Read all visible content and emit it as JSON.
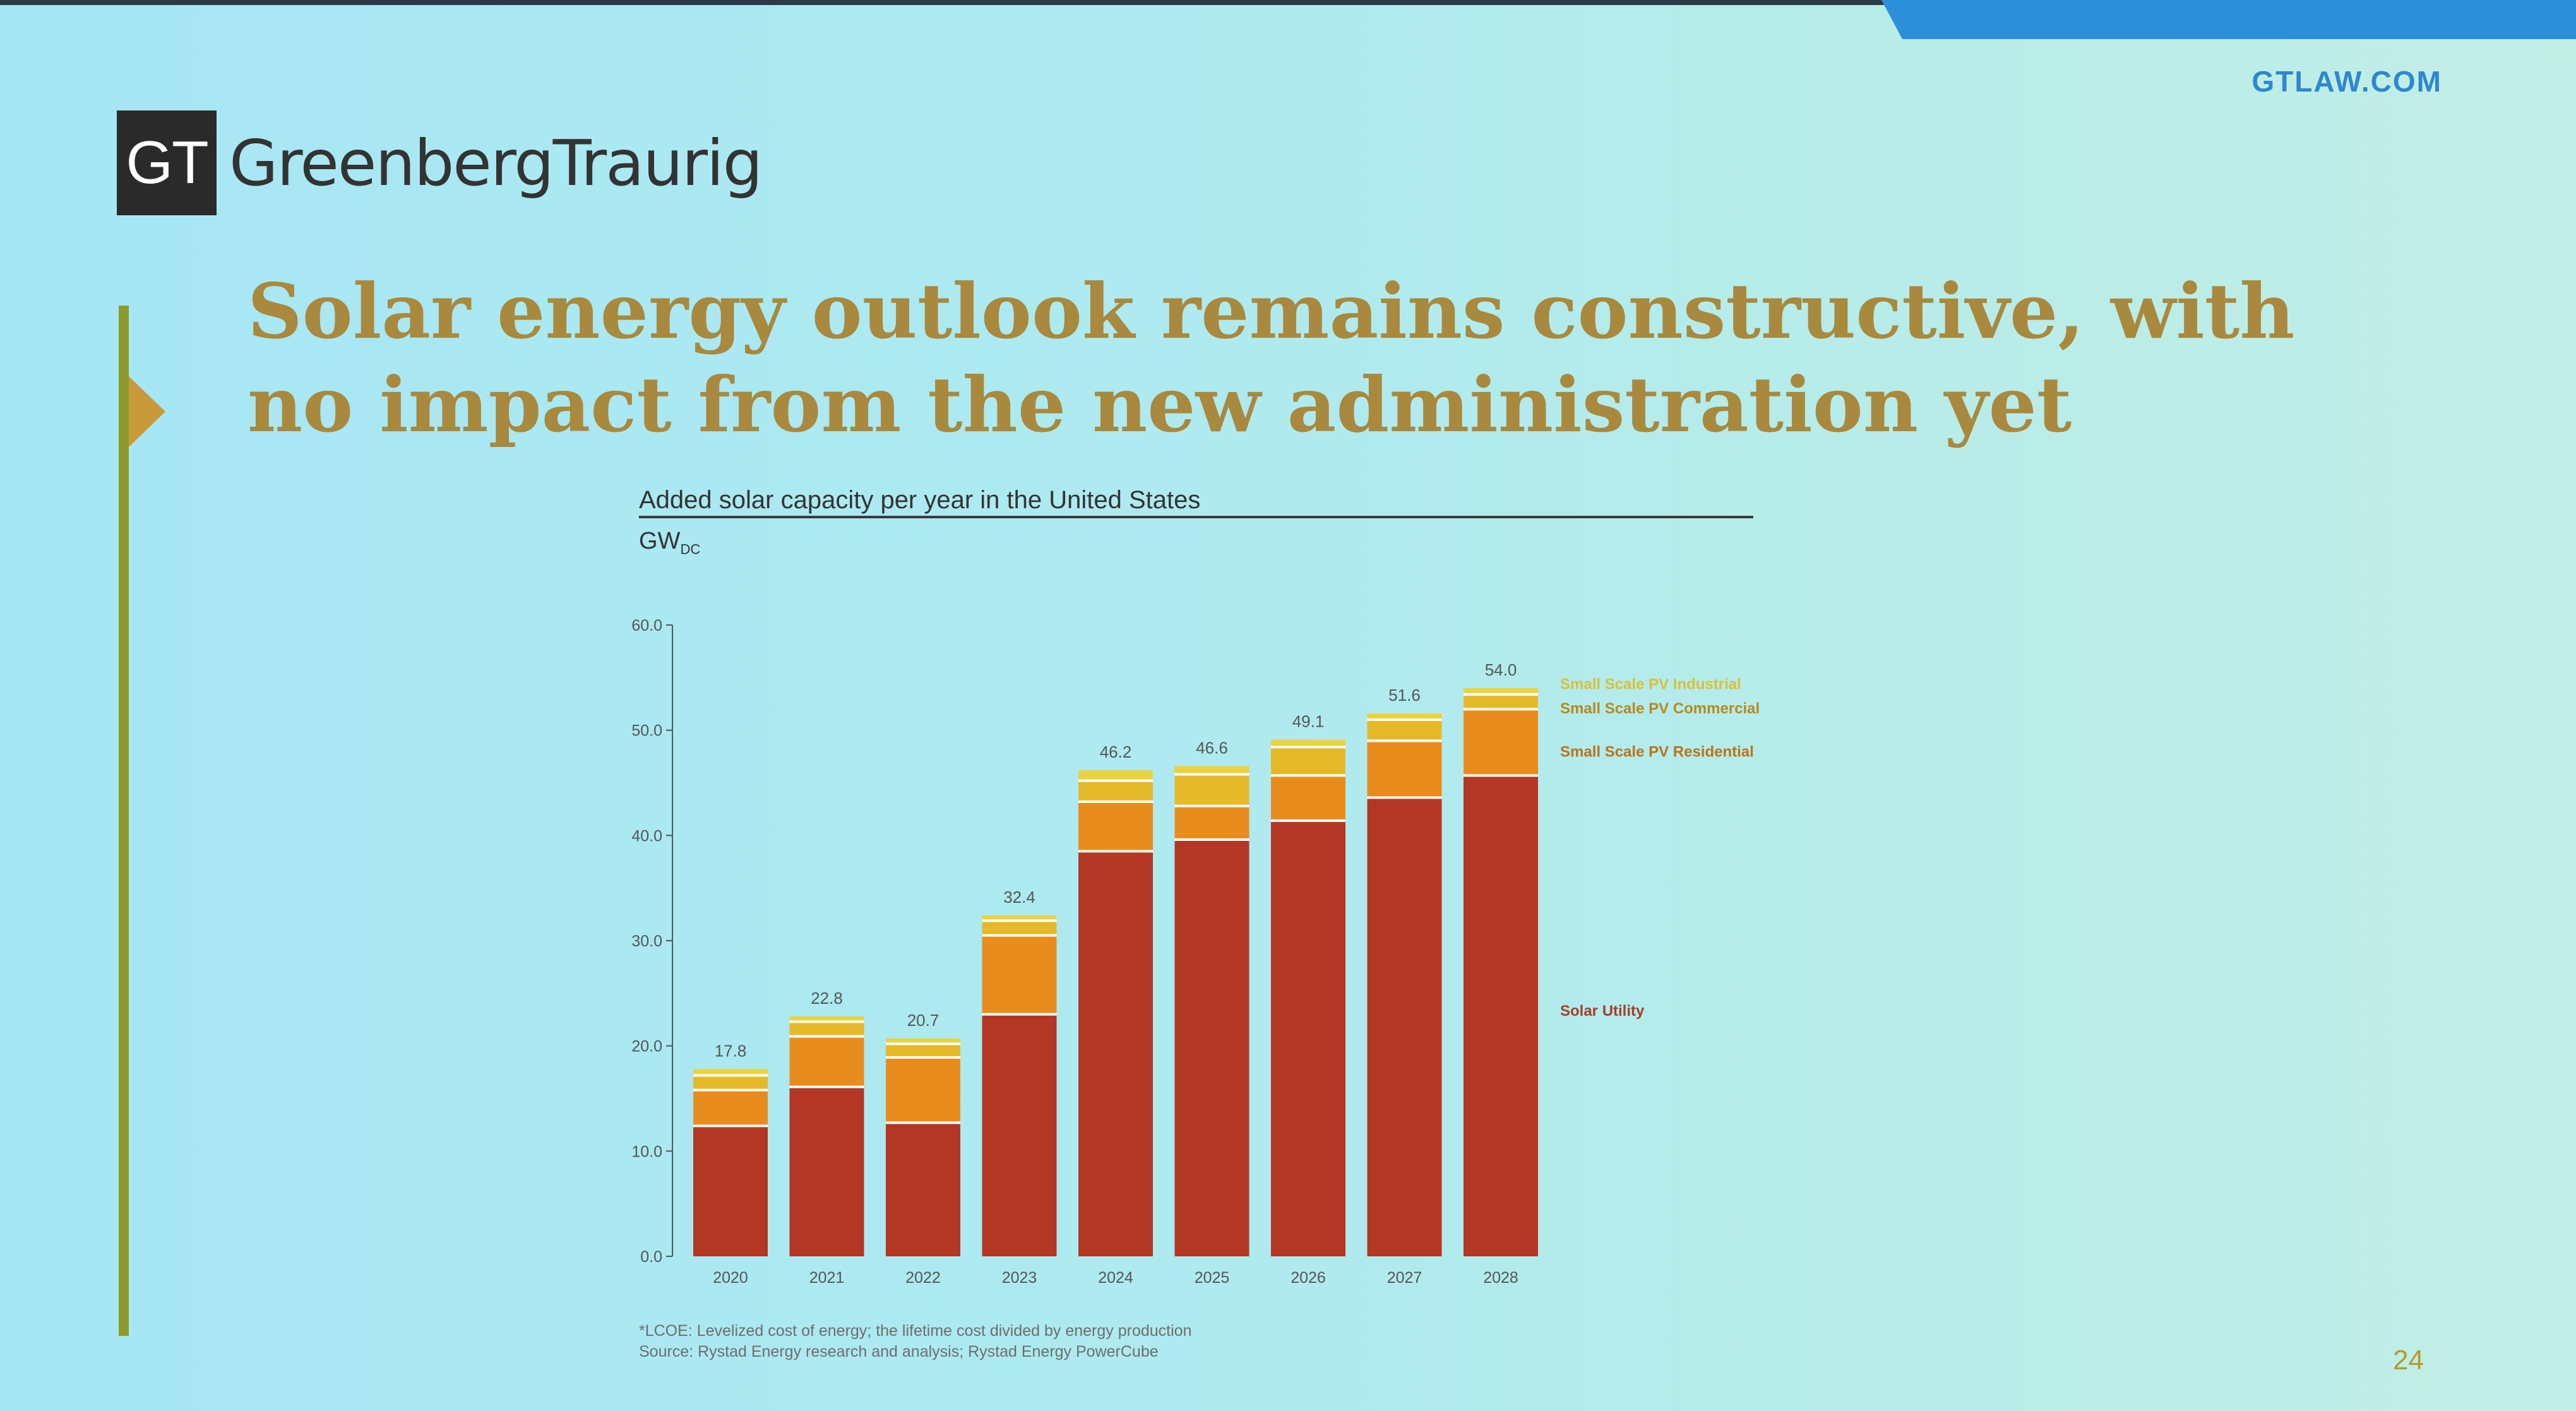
{
  "site": "GTLAW.COM",
  "logo": {
    "mark": "GT",
    "name": "GreenbergTraurig"
  },
  "headline": "Solar energy outlook remains constructive, with no impact from the new administration yet",
  "page_number": "24",
  "notes": {
    "lcoe": "*LCOE: Levelized cost of energy; the lifetime cost divided by energy production",
    "source": "Source: Rystad Energy research and analysis; Rystad Energy PowerCube"
  },
  "colors": {
    "utility": "#b43624",
    "residential": "#e98c1e",
    "commercial": "#e6b92a",
    "industrial": "#ead33e",
    "title": "#a8893e",
    "accent": "#2e8fd9"
  },
  "chart_data": {
    "type": "bar",
    "stacked": true,
    "title": "Added solar capacity per year in the United States",
    "unit": "GW",
    "unit_subscript": "DC",
    "categories": [
      "2020",
      "2021",
      "2022",
      "2023",
      "2024",
      "2025",
      "2026",
      "2027",
      "2028"
    ],
    "totals": [
      17.8,
      22.8,
      20.7,
      32.4,
      46.2,
      46.6,
      49.1,
      51.6,
      54.0
    ],
    "total_labels": [
      "17.8",
      "22.8",
      "20.7",
      "32.4",
      "46.2",
      "46.6",
      "49.1",
      "51.6",
      "54.0"
    ],
    "series": [
      {
        "name": "Solar  Utility",
        "values": [
          12.4,
          16.1,
          12.7,
          23.0,
          38.5,
          39.6,
          41.4,
          43.6,
          45.7
        ]
      },
      {
        "name": "Small Scale PV Residential",
        "values": [
          3.4,
          4.8,
          6.2,
          7.5,
          4.7,
          3.2,
          4.3,
          5.4,
          6.3
        ]
      },
      {
        "name": "Small Scale PV Commercial",
        "values": [
          1.4,
          1.4,
          1.3,
          1.4,
          2.0,
          3.0,
          2.7,
          2.0,
          1.4
        ]
      },
      {
        "name": "Small Scale PV Industrial",
        "values": [
          0.6,
          0.5,
          0.5,
          0.5,
          1.0,
          0.8,
          0.7,
          0.6,
          0.6
        ]
      }
    ],
    "ylim": [
      0,
      60
    ],
    "yticks": [
      "0.0",
      "10.0",
      "20.0",
      "30.0",
      "40.0",
      "50.0",
      "60.0"
    ],
    "legend": "right, labels aligned with segments",
    "grid": false
  }
}
